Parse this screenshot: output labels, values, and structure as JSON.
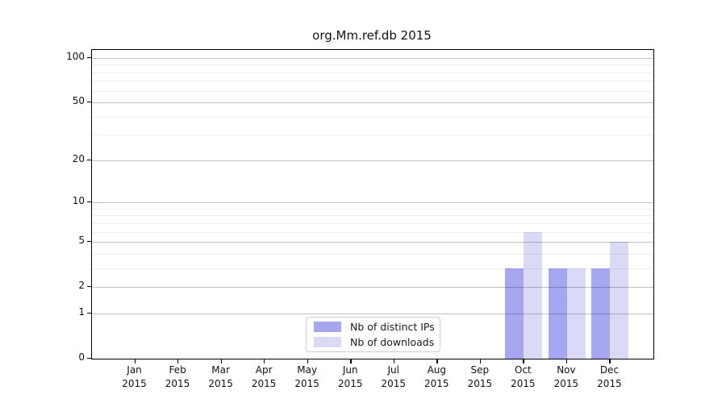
{
  "chart_data": {
    "type": "bar",
    "title": "org.Mm.ref.db 2015",
    "categories": [
      "Jan",
      "Feb",
      "Mar",
      "Apr",
      "May",
      "Jun",
      "Jul",
      "Aug",
      "Sep",
      "Oct",
      "Nov",
      "Dec"
    ],
    "category_year": "2015",
    "series": [
      {
        "name": "Nb of distinct IPs",
        "color": "#a6a6f1",
        "values": [
          0,
          0,
          0,
          0,
          0,
          0,
          0,
          0,
          0,
          3,
          3,
          3
        ]
      },
      {
        "name": "Nb of downloads",
        "color": "#dadaf7",
        "values": [
          0,
          0,
          0,
          0,
          0,
          0,
          0,
          0,
          0,
          6,
          3,
          5
        ]
      }
    ],
    "xlabel": "",
    "ylabel": "",
    "yscale": "log10(1+y)",
    "ylim": [
      0,
      113
    ],
    "yticks_major": [
      0,
      1,
      2,
      5,
      10,
      20,
      50,
      100
    ],
    "yticks_minor": [
      3,
      4,
      6,
      7,
      8,
      9,
      30,
      40,
      60,
      70,
      80,
      90
    ],
    "grid": true,
    "legend_position": "lower-center-inside"
  },
  "legend": {
    "items": [
      {
        "label": "Nb of distinct IPs"
      },
      {
        "label": "Nb of downloads"
      }
    ]
  }
}
